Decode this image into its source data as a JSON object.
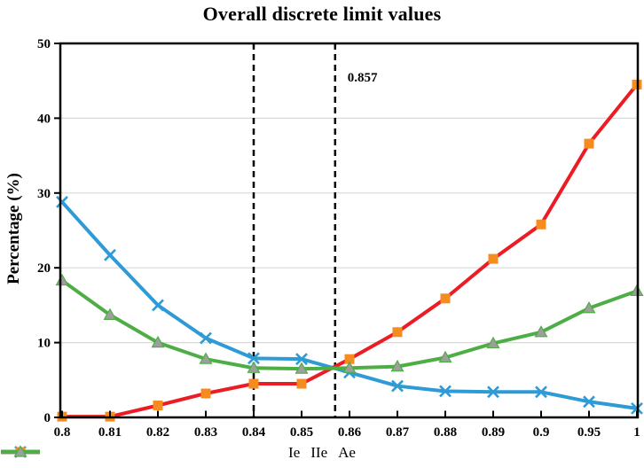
{
  "title": "Overall discrete limit values",
  "chart_data": {
    "type": "line",
    "title": "Overall discrete limit values",
    "xlabel": "",
    "ylabel": "Percentage (%)",
    "ylim": [
      0,
      50
    ],
    "yticks": [
      0,
      10,
      20,
      30,
      40,
      50
    ],
    "grid": "horizontal-only",
    "grid_color": "#d9d9d9",
    "axis_color": "#000000",
    "legend_position": "bottom",
    "categories": [
      "0.8",
      "0.81",
      "0.82",
      "0.83",
      "0.84",
      "0.85",
      "0.86",
      "0.87",
      "0.88",
      "0.89",
      "0.9",
      "0.95",
      "1"
    ],
    "series": [
      {
        "name": "Ie",
        "marker": "x",
        "color": "#2e9bd6",
        "marker_color": "#2e9bd6",
        "values": [
          28.8,
          21.7,
          15.0,
          10.6,
          7.9,
          7.8,
          6.0,
          4.2,
          3.5,
          3.4,
          3.4,
          2.1,
          1.2
        ]
      },
      {
        "name": "IIe",
        "marker": "square",
        "color": "#ec1c24",
        "marker_color": "#f68b1f",
        "values": [
          0.1,
          0.1,
          1.6,
          3.2,
          4.5,
          4.5,
          7.8,
          11.4,
          15.9,
          21.2,
          25.8,
          36.6,
          44.5
        ]
      },
      {
        "name": "Ae",
        "marker": "triangle",
        "color": "#4eae45",
        "marker_color": "#9e9e9e",
        "values": [
          18.3,
          13.7,
          10.0,
          7.8,
          6.6,
          6.5,
          6.6,
          6.8,
          8.0,
          9.9,
          11.4,
          14.6,
          16.9
        ]
      }
    ],
    "vlines": [
      {
        "x_index": 4,
        "style": "dashed",
        "color": "#000000"
      },
      {
        "x_index": 5.7,
        "style": "dashed",
        "color": "#000000"
      }
    ],
    "annotations": [
      {
        "text": "0.857",
        "x_index": 5.7,
        "y_value": 45.5
      }
    ]
  }
}
